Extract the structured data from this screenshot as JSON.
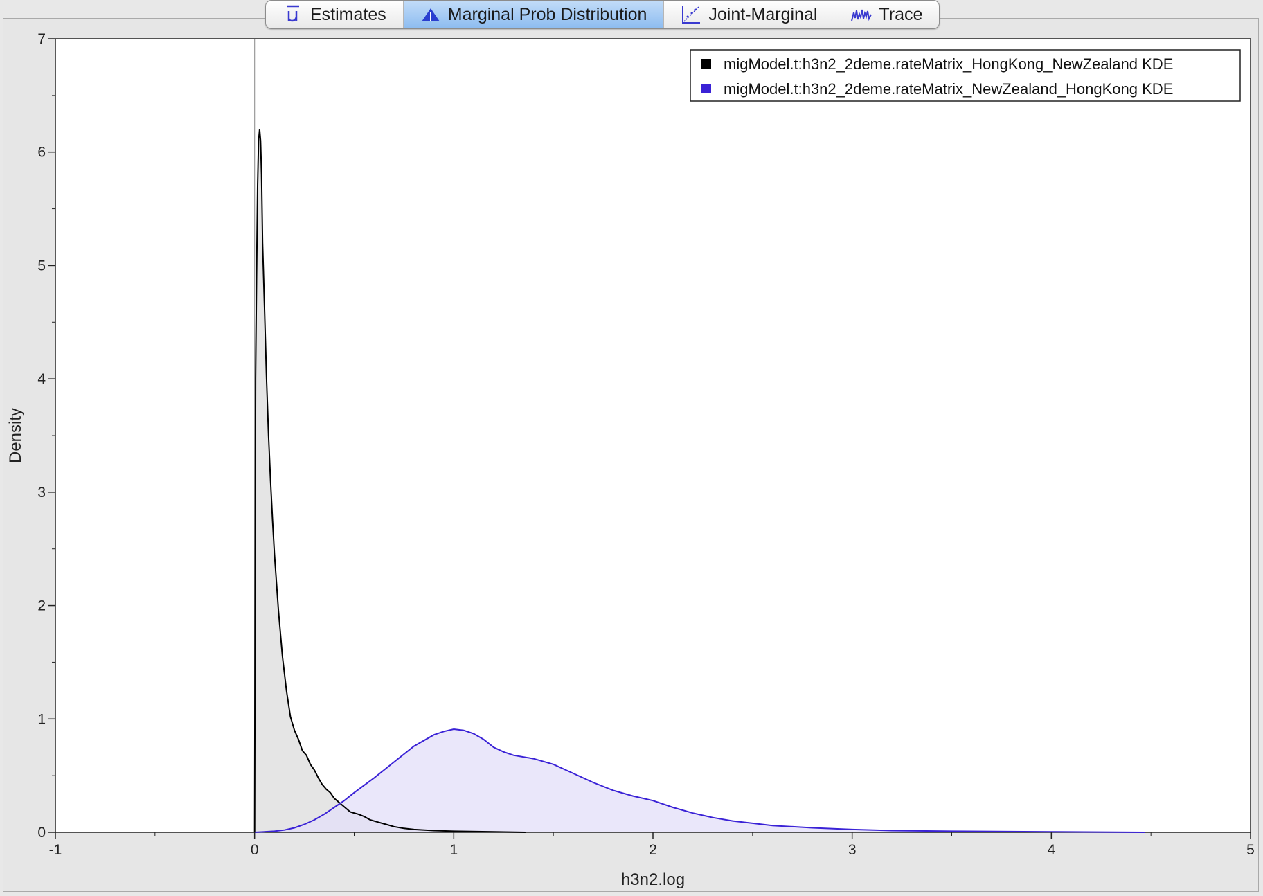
{
  "tabs": [
    {
      "label": "Estimates",
      "icon": "mu-bar-icon",
      "active": false
    },
    {
      "label": "Marginal Prob Distribution",
      "icon": "distribution-icon",
      "active": true
    },
    {
      "label": "Joint-Marginal",
      "icon": "scatter-icon",
      "active": false
    },
    {
      "label": "Trace",
      "icon": "trace-icon",
      "active": false
    }
  ],
  "chart_data": {
    "type": "area",
    "title": "",
    "xlabel": "h3n2.log",
    "ylabel": "Density",
    "xlim": [
      -1,
      5
    ],
    "ylim": [
      0,
      7
    ],
    "xticks": [
      -1,
      0,
      1,
      2,
      3,
      4,
      5
    ],
    "yticks": [
      0,
      1,
      2,
      3,
      4,
      5,
      6,
      7
    ],
    "legend_position": "top-right",
    "reference_line_x": 0,
    "series": [
      {
        "name": "migModel.t:h3n2_2deme.rateMatrix_HongKong_NewZealand KDE",
        "color": "#000000",
        "fill": "#dcdcdc",
        "x": [
          0.0,
          0.005,
          0.01,
          0.015,
          0.02,
          0.025,
          0.03,
          0.035,
          0.04,
          0.05,
          0.06,
          0.07,
          0.08,
          0.09,
          0.1,
          0.12,
          0.14,
          0.16,
          0.18,
          0.2,
          0.22,
          0.24,
          0.26,
          0.28,
          0.3,
          0.32,
          0.34,
          0.36,
          0.38,
          0.4,
          0.42,
          0.44,
          0.46,
          0.48,
          0.5,
          0.52,
          0.55,
          0.58,
          0.62,
          0.66,
          0.7,
          0.75,
          0.8,
          0.9,
          1.0,
          1.2,
          1.36
        ],
        "y": [
          0.0,
          4.0,
          4.9,
          5.7,
          6.1,
          6.2,
          6.1,
          5.8,
          5.2,
          4.6,
          4.0,
          3.5,
          3.1,
          2.75,
          2.45,
          1.95,
          1.55,
          1.25,
          1.02,
          0.9,
          0.82,
          0.72,
          0.68,
          0.6,
          0.55,
          0.48,
          0.42,
          0.38,
          0.35,
          0.3,
          0.27,
          0.24,
          0.21,
          0.18,
          0.17,
          0.16,
          0.14,
          0.11,
          0.09,
          0.07,
          0.05,
          0.035,
          0.025,
          0.015,
          0.01,
          0.005,
          0.0
        ]
      },
      {
        "name": "migModel.t:h3n2_2deme.rateMatrix_NewZealand_HongKong KDE",
        "color": "#3a22d6",
        "fill": "#e3dff8",
        "x": [
          0.0,
          0.1,
          0.15,
          0.2,
          0.25,
          0.3,
          0.35,
          0.4,
          0.45,
          0.5,
          0.6,
          0.7,
          0.8,
          0.9,
          0.95,
          1.0,
          1.05,
          1.1,
          1.15,
          1.2,
          1.25,
          1.3,
          1.4,
          1.5,
          1.6,
          1.7,
          1.8,
          1.9,
          2.0,
          2.1,
          2.2,
          2.3,
          2.4,
          2.5,
          2.6,
          2.8,
          3.0,
          3.2,
          3.5,
          4.0,
          4.47
        ],
        "y": [
          0.0,
          0.01,
          0.02,
          0.04,
          0.07,
          0.11,
          0.16,
          0.22,
          0.28,
          0.35,
          0.48,
          0.62,
          0.76,
          0.86,
          0.89,
          0.91,
          0.9,
          0.87,
          0.82,
          0.75,
          0.71,
          0.68,
          0.65,
          0.6,
          0.52,
          0.44,
          0.37,
          0.32,
          0.28,
          0.22,
          0.17,
          0.13,
          0.1,
          0.08,
          0.06,
          0.04,
          0.025,
          0.015,
          0.01,
          0.005,
          0.0
        ]
      }
    ]
  }
}
